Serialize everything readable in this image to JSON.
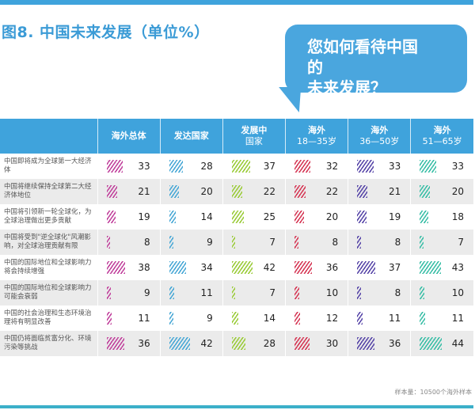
{
  "title": "图8. 中国未来发展（单位%）",
  "bubble": {
    "line1": "您如何看待中国的",
    "line2": "未来发展？"
  },
  "footnote": "样本量：10500个海外样本",
  "chart_data": {
    "type": "table",
    "title": "图8. 中国未来发展（单位%）",
    "columns": [
      {
        "label1": "海外总体",
        "label2": "",
        "color": "#c2449e"
      },
      {
        "label1": "发达国家",
        "label2": "",
        "color": "#4ba9d6"
      },
      {
        "label1": "发展中",
        "label2": "国家",
        "color": "#9ccc3c"
      },
      {
        "label1": "海外",
        "label2": "18—35岁",
        "color": "#d63b58"
      },
      {
        "label1": "海外",
        "label2": "36—50岁",
        "color": "#5b4aaa"
      },
      {
        "label1": "海外",
        "label2": "51—65岁",
        "color": "#3dbfa8"
      }
    ],
    "rows": [
      {
        "label": "中国即将成为全球第一大经济体",
        "values": [
          33,
          28,
          37,
          32,
          33,
          33
        ]
      },
      {
        "label": "中国将继续保持全球第二大经济体地位",
        "values": [
          21,
          20,
          22,
          22,
          21,
          20
        ]
      },
      {
        "label": "中国将引领新一轮全球化，为全球治理做出更多贡献",
        "values": [
          19,
          14,
          25,
          20,
          19,
          18
        ]
      },
      {
        "label": "中国将受到\"逆全球化\"风潮影响，对全球治理贡献有限",
        "values": [
          8,
          9,
          7,
          8,
          8,
          7
        ]
      },
      {
        "label": "中国的国际地位和全球影响力将会持续增强",
        "values": [
          38,
          34,
          42,
          36,
          37,
          43
        ]
      },
      {
        "label": "中国的国际地位和全球影响力可能会衰弱",
        "values": [
          9,
          11,
          7,
          10,
          8,
          10
        ]
      },
      {
        "label": "中国的社会治理和生态环境治理将有明显改善",
        "values": [
          11,
          9,
          14,
          12,
          11,
          11
        ]
      },
      {
        "label": "中国仍将面临贫富分化、环境污染等挑战",
        "values": [
          36,
          42,
          28,
          30,
          36,
          44
        ]
      }
    ],
    "unit": "%"
  }
}
